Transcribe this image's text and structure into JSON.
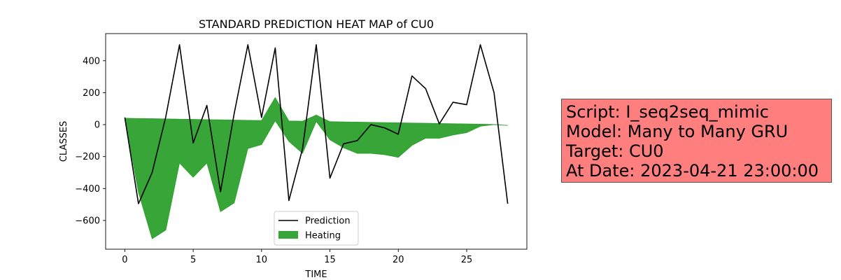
{
  "chart_data": {
    "type": "line",
    "title": "STANDARD PREDICTION HEAT MAP of CU0",
    "xlabel": "TIME",
    "ylabel": "CLASSES",
    "xlim": [
      -1.4,
      29.4
    ],
    "ylim": [
      -780,
      570
    ],
    "x_ticks": [
      0,
      5,
      10,
      15,
      20,
      25
    ],
    "y_ticks": [
      -600,
      -400,
      -200,
      0,
      200,
      400
    ],
    "grid": false,
    "legend_position": "bottom-center",
    "series": [
      {
        "name": "Prediction",
        "kind": "line",
        "color": "#000000",
        "x": [
          0,
          1,
          2,
          3,
          4,
          5,
          6,
          7,
          8,
          9,
          10,
          11,
          12,
          13,
          14,
          15,
          16,
          17,
          18,
          19,
          20,
          21,
          22,
          23,
          24,
          25,
          26,
          27,
          28
        ],
        "values": [
          45,
          -495,
          -300,
          50,
          500,
          -115,
          120,
          -420,
          70,
          500,
          45,
          480,
          -475,
          -150,
          500,
          -335,
          -120,
          -100,
          0,
          -20,
          -60,
          305,
          225,
          5,
          140,
          125,
          500,
          200,
          -495
        ]
      },
      {
        "name": "Heating",
        "kind": "fill_between",
        "color": "#2ca02c",
        "alpha": 0.95,
        "x": [
          0,
          1,
          2,
          3,
          4,
          5,
          6,
          7,
          8,
          9,
          10,
          11,
          12,
          13,
          14,
          15,
          16,
          17,
          18,
          19,
          20,
          21,
          22,
          23,
          24,
          25,
          26,
          27,
          28
        ],
        "upper": [
          40,
          38.6,
          37.1,
          35.7,
          34.3,
          32.9,
          31.4,
          30,
          28.6,
          27.1,
          25.7,
          170,
          22.9,
          21.4,
          60,
          18.6,
          17.1,
          15.7,
          14.3,
          12.9,
          11.4,
          10,
          8.6,
          7.1,
          5.7,
          4.3,
          2.9,
          1.4,
          -5
        ],
        "lower": [
          40,
          -425,
          -715,
          -660,
          -240,
          -330,
          -240,
          -545,
          -490,
          -150,
          -125,
          24.3,
          -105,
          -180,
          20,
          -95,
          -145,
          -180,
          -180,
          -188,
          -205,
          -130,
          -85,
          -85,
          -65,
          -50,
          -10,
          0,
          -5
        ]
      }
    ]
  },
  "info_box": {
    "script": "Script: I_seq2seq_mimic",
    "model": "Model: Many to Many GRU",
    "target": "Target: CU0",
    "date": "At Date: 2023-04-21 23:00:00",
    "background": "#ff7f7f"
  }
}
